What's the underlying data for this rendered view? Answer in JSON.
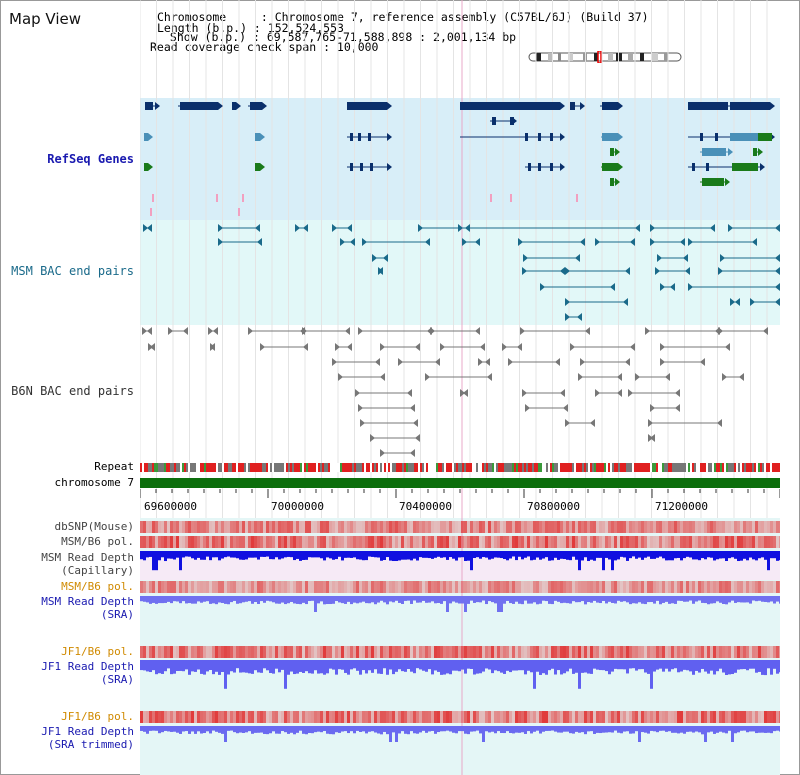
{
  "header": {
    "view_title": "Map View",
    "info_lines": [
      "Chromosome     : Chromosome 7, reference assembly (C57BL/6J) (Build 37)",
      "Length (b.p.) : 152,524,553",
      " Show (b.p.) : 69,587,765-71,588,898 : 2,001,134 bp",
      "Read coverage check span : 10,000"
    ]
  },
  "tracks": {
    "refseq": "RefSeq Genes",
    "msm_bac": "MSM BAC end pairs",
    "b6n_bac": "B6N BAC end pairs",
    "repeat": "Repeat",
    "chromosome": "chromosome 7",
    "dbsnp": "dbSNP(Mouse)",
    "msm_b6_pol_1": "MSM/B6 pol.",
    "msm_depth_cap_1": "MSM Read Depth",
    "msm_depth_cap_2": "(Capillary)",
    "msm_b6_pol_2": "MSM/B6 pol.",
    "msm_depth_sra_1": "MSM Read Depth",
    "msm_depth_sra_2": "(SRA)",
    "jf1_b6_pol_1": "JF1/B6 pol.",
    "jf1_depth_sra_1": "JF1 Read Depth",
    "jf1_depth_sra_2": "(SRA)",
    "jf1_b6_pol_2": "JF1/B6 pol.",
    "jf1_depth_trim_1": "JF1 Read Depth",
    "jf1_depth_trim_2": "(SRA trimmed)"
  },
  "axis": {
    "ticks": [
      "69600000",
      "70000000",
      "70400000",
      "70800000",
      "71200000"
    ]
  },
  "colors": {
    "gene_dark": "#0a2f6b",
    "gene_mid": "#4a90b8",
    "gene_green": "#1a7a1a",
    "msm_pair": "#1a6a8a",
    "b6n_pair": "#777777",
    "chromosome_bar": "#0c6e0c",
    "refseq_bg": "#d8eef8",
    "msm_bg": "#e2f8f8",
    "label_blue": "#1a1ab0",
    "label_teal": "#1a6a8a",
    "label_orange": "#d08a00"
  }
}
